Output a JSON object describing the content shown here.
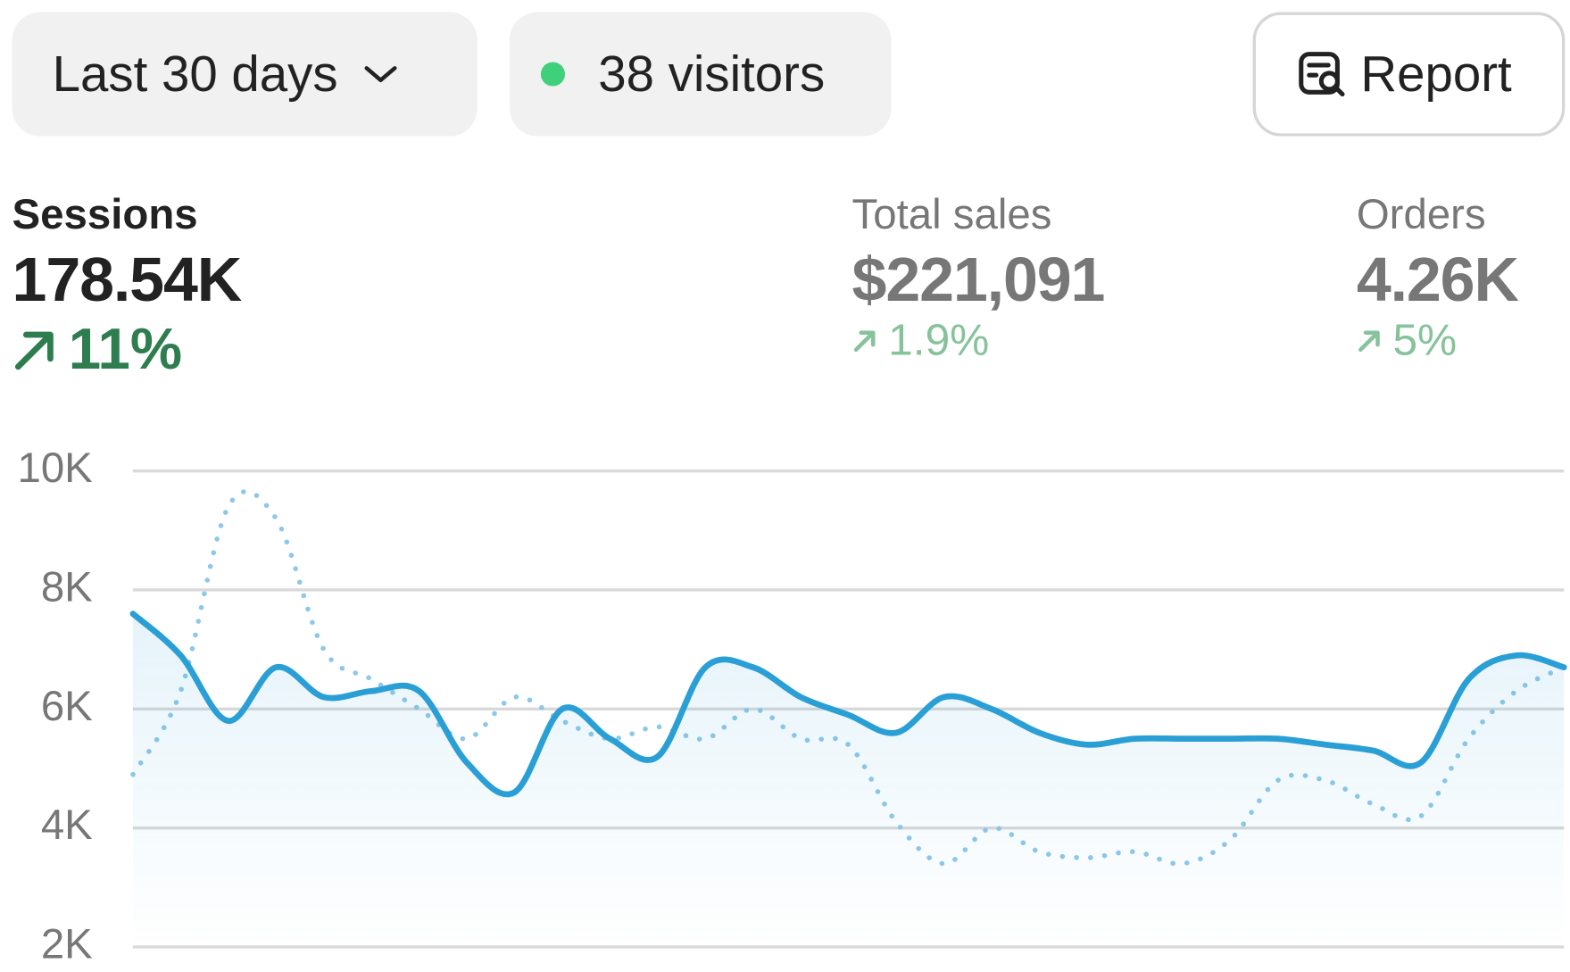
{
  "toolbar": {
    "date_range": "Last 30 days",
    "visitors": "38 visitors",
    "report": "Report"
  },
  "metrics": [
    {
      "label": "Sessions",
      "value": "178.54K",
      "change": "11%"
    },
    {
      "label": "Total sales",
      "value": "$221,091",
      "change": "1.9%"
    },
    {
      "label": "Orders",
      "value": "4.26K",
      "change": "5%"
    }
  ],
  "chart_data": {
    "type": "line",
    "ylim": [
      2000,
      10000
    ],
    "yticks": [
      {
        "value": 2000,
        "label": "2K"
      },
      {
        "value": 4000,
        "label": "4K"
      },
      {
        "value": 6000,
        "label": "6K"
      },
      {
        "value": 8000,
        "label": "8K"
      },
      {
        "value": 10000,
        "label": "10K"
      }
    ],
    "grid": true,
    "series": [
      {
        "color": "#2a9fd6",
        "style": "solid",
        "fill": true,
        "values": [
          7600,
          6900,
          5800,
          6700,
          6200,
          6300,
          6300,
          5100,
          4600,
          6000,
          5500,
          5200,
          6700,
          6700,
          6200,
          5900,
          5600,
          6200,
          6000,
          5600,
          5400,
          5500,
          5500,
          5500,
          5500,
          5400,
          5300,
          5100,
          6500,
          6900,
          6700
        ]
      },
      {
        "color": "#8ec8e8",
        "style": "dotted",
        "fill": false,
        "values": [
          4900,
          6300,
          9400,
          9200,
          7000,
          6500,
          6000,
          5500,
          6200,
          5800,
          5500,
          5700,
          5500,
          6000,
          5500,
          5400,
          4100,
          3400,
          4000,
          3600,
          3500,
          3600,
          3400,
          3800,
          4800,
          4800,
          4400,
          4200,
          5500,
          6300,
          6700
        ]
      }
    ]
  }
}
